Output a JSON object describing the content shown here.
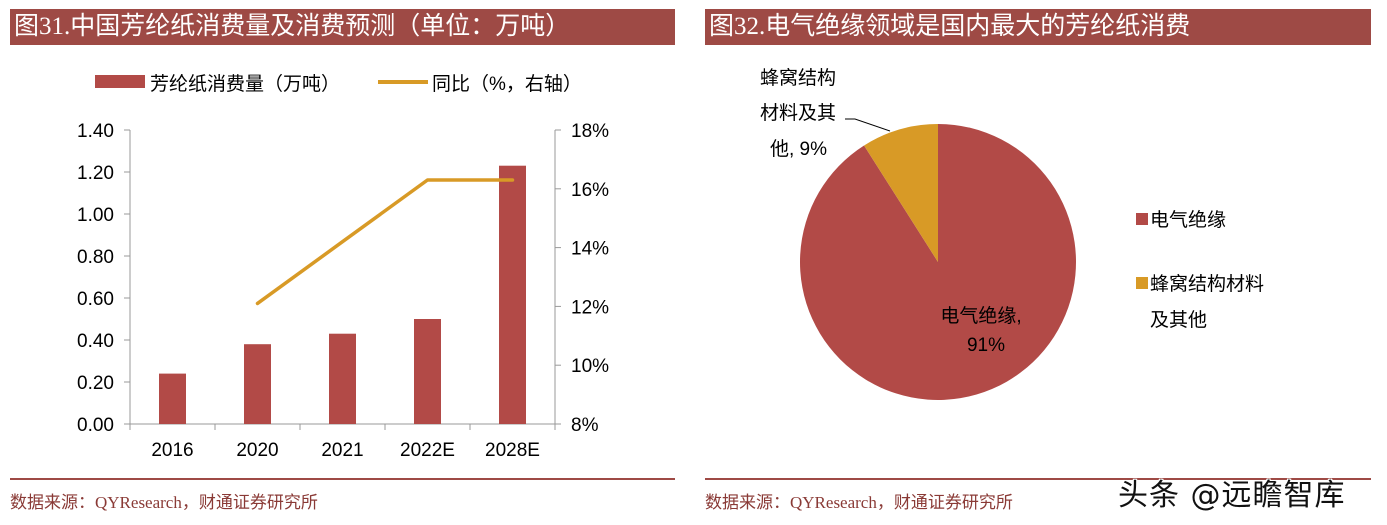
{
  "left_panel": {
    "title": "图31.中国芳纶纸消费量及消费预测（单位：万吨）",
    "source": "数据来源：QYResearch，财通证券研究所"
  },
  "right_panel": {
    "title": "图32.电气绝缘领域是国内最大的芳纶纸消费",
    "source": "数据来源：QYResearch，财通证券研究所"
  },
  "watermark": "头条 @远瞻智库",
  "colors": {
    "bar": "#b24a47",
    "line": "#d89a26",
    "title_bg": "#9e4a45",
    "pie_main": "#b24a47",
    "pie_other": "#d89a26"
  },
  "chart_data": [
    {
      "type": "bar",
      "title": "图31.中国芳纶纸消费量及消费预测（单位：万吨）",
      "categories": [
        "2016",
        "2020",
        "2021",
        "2022E",
        "2028E"
      ],
      "series": [
        {
          "name": "芳纶纸消费量（万吨）",
          "type": "bar",
          "axis": "left",
          "values": [
            0.24,
            0.38,
            0.43,
            0.5,
            1.23
          ]
        },
        {
          "name": "同比（%，右轴）",
          "type": "line",
          "axis": "right",
          "values": [
            null,
            12.1,
            14.2,
            16.3,
            16.3
          ]
        }
      ],
      "y_left": {
        "ticks": [
          "0.00",
          "0.20",
          "0.40",
          "0.60",
          "0.80",
          "1.00",
          "1.20",
          "1.40"
        ],
        "range": [
          0,
          1.4
        ]
      },
      "y_right": {
        "ticks": [
          "8%",
          "10%",
          "12%",
          "14%",
          "16%",
          "18%"
        ],
        "range": [
          8,
          18
        ]
      },
      "legend": [
        "芳纶纸消费量（万吨）",
        "同比（%，右轴）"
      ],
      "legend_position": "top",
      "grid": false,
      "xlabel": "",
      "ylabel": ""
    },
    {
      "type": "pie",
      "title": "图32.电气绝缘领域是国内最大的芳纶纸消费",
      "categories": [
        "电气绝缘",
        "蜂窝结构材料及其他"
      ],
      "values": [
        91,
        9
      ],
      "data_labels": [
        "电气绝缘, 91%",
        "蜂窝结构材料及其他, 9%"
      ],
      "legend": [
        "电气绝缘",
        "蜂窝结构材料及其他"
      ],
      "legend_position": "right"
    }
  ]
}
